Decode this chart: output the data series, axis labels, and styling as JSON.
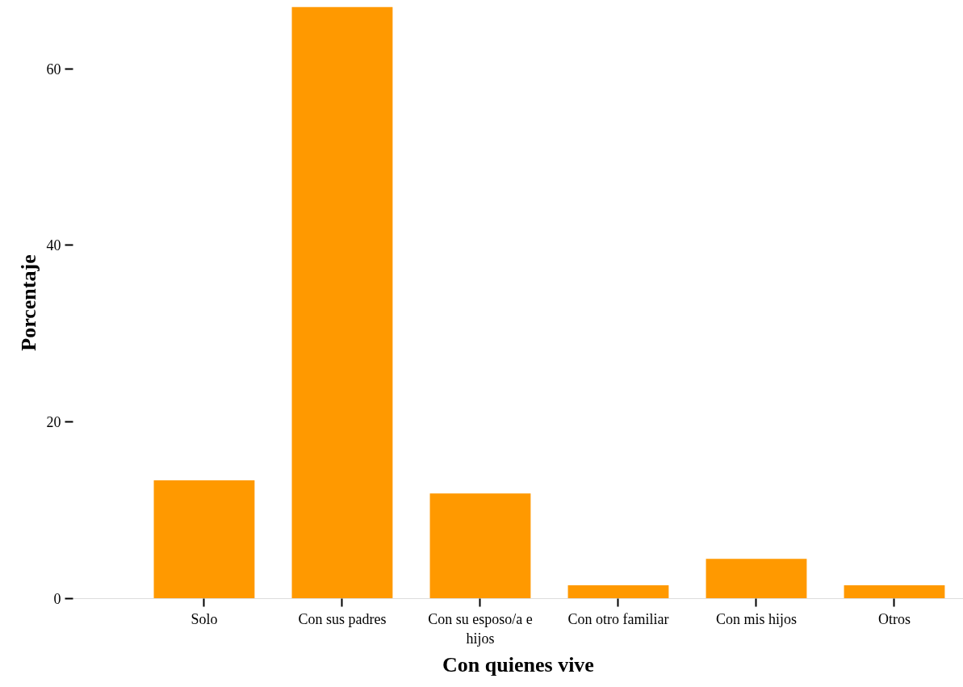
{
  "chart_data": {
    "type": "bar",
    "xlabel": "Con quienes vive",
    "ylabel": "Porcentaje",
    "categories": [
      "Solo",
      "Con sus padres",
      "Con su esposo/a e hijos",
      "Con otro familiar",
      "Con mis hijos",
      "Otros"
    ],
    "values": [
      13.4,
      67.0,
      11.9,
      1.5,
      4.5,
      1.5
    ],
    "color": "#ff9900",
    "ylim": [
      0,
      67
    ],
    "yticks": [
      0,
      20,
      40,
      60
    ],
    "grid": false
  }
}
